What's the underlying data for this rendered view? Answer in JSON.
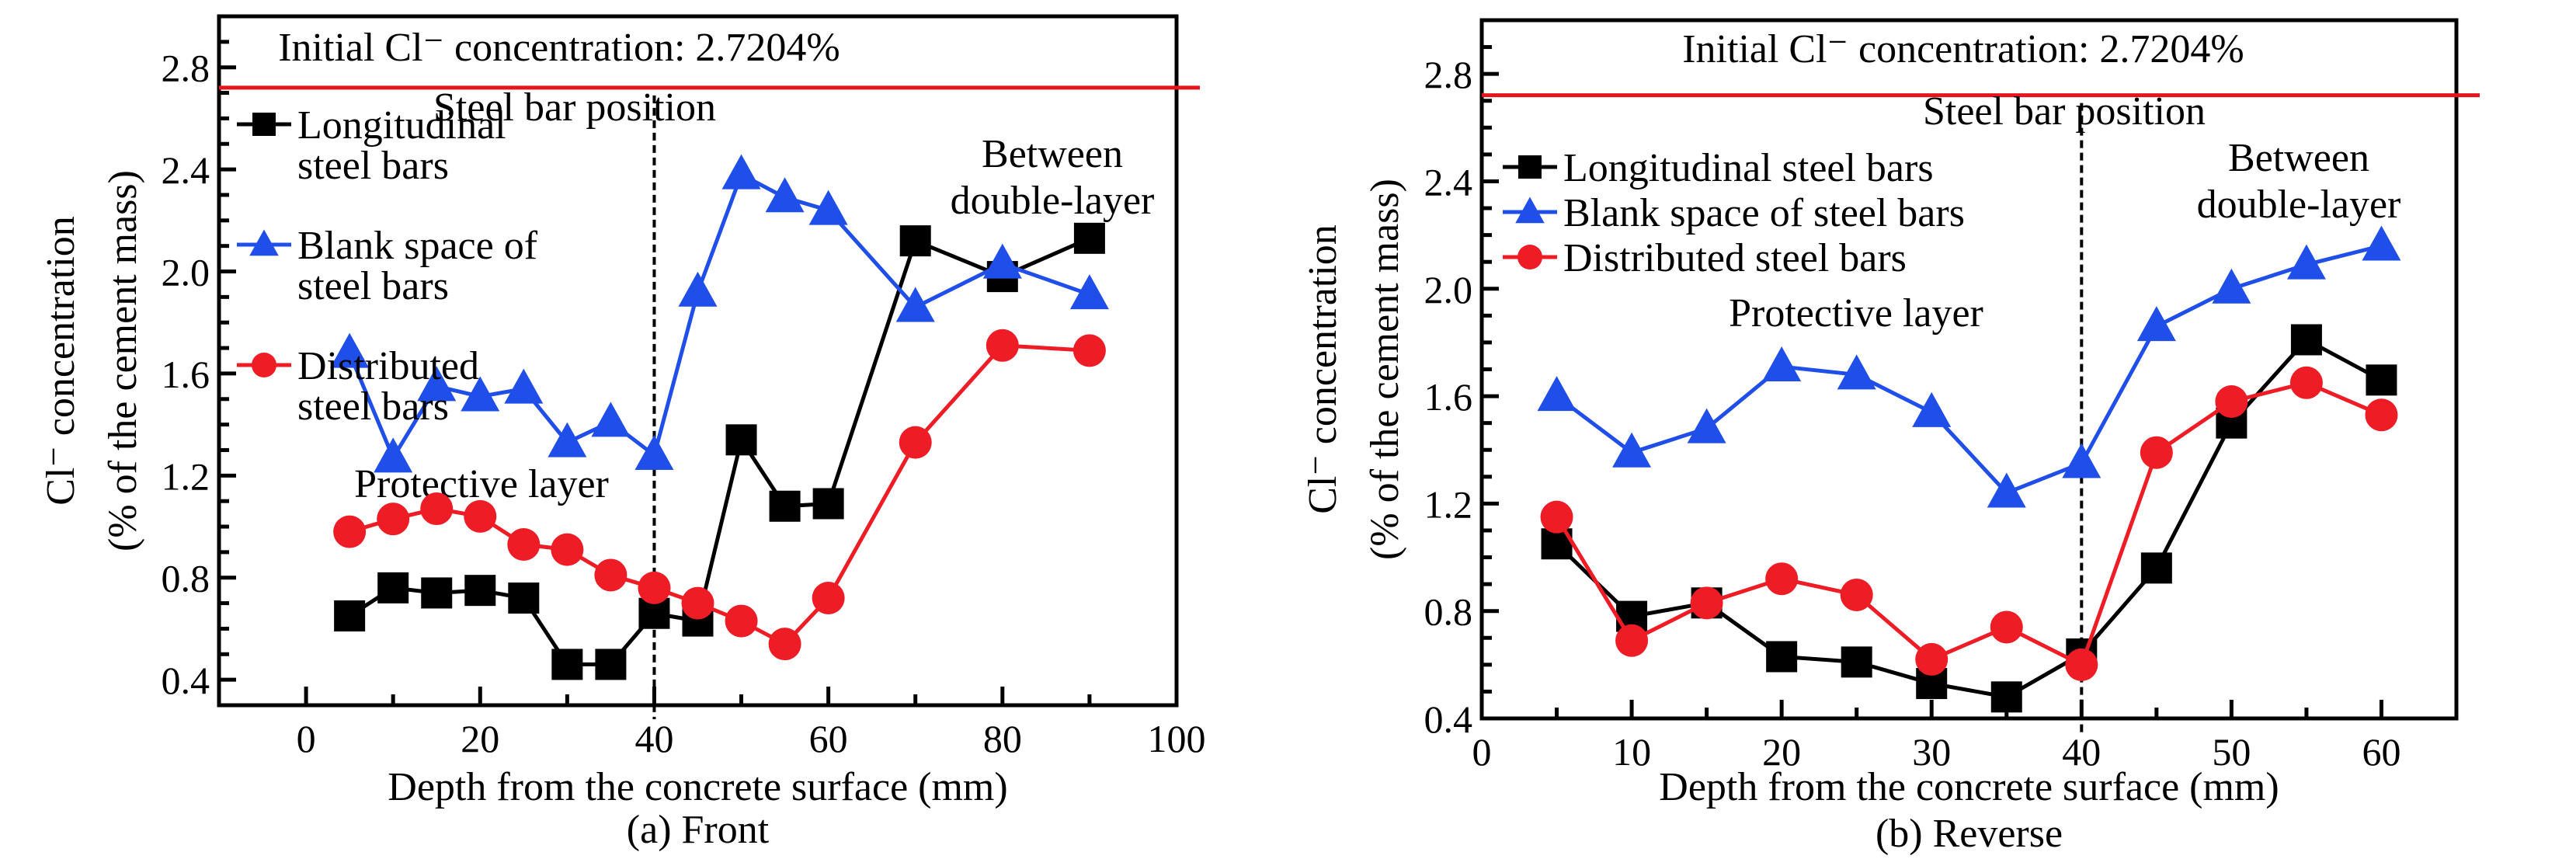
{
  "chart_data": [
    {
      "type": "line",
      "panel": "a",
      "caption": "(a) Front",
      "xlabel": "Depth from the concrete surface (mm)",
      "ylabel_line1": "Cl⁻ concentration",
      "ylabel_line2": "(% of the cement mass)",
      "xlim": [
        -10,
        100
      ],
      "ylim": [
        0.3,
        3.0
      ],
      "xticks": [
        0,
        20,
        40,
        60,
        80,
        100
      ],
      "xminor_step": 10,
      "yticks": [
        0.4,
        0.8,
        1.2,
        1.6,
        2.0,
        2.4,
        2.8
      ],
      "yminor_step": 0.1,
      "legend_position": "top-left",
      "reference_line": {
        "y": 2.7204,
        "label": "Initial Cl⁻ concentration: 2.7204%",
        "color": "#e8141c"
      },
      "vertical_line": {
        "x": 40,
        "label": "Steel bar position",
        "style": "dashed"
      },
      "annotations": [
        {
          "text": "Protective layer",
          "region": "left-middle"
        },
        {
          "text_lines": [
            "Between",
            "double-layer"
          ],
          "region": "top-right"
        }
      ],
      "x": [
        5,
        10,
        15,
        20,
        25,
        30,
        35,
        40,
        45,
        50,
        55,
        60,
        70,
        80,
        90
      ],
      "series": [
        {
          "name": "Longitudinal steel bars",
          "legend_lines": [
            "Longitudinal",
            "steel bars"
          ],
          "marker": "square",
          "color": "#000000",
          "values": [
            0.65,
            0.76,
            0.74,
            0.75,
            0.72,
            0.46,
            0.46,
            0.66,
            0.63,
            1.34,
            1.08,
            1.09,
            2.12,
            1.98,
            2.13
          ]
        },
        {
          "name": "Blank space of steel bars",
          "legend_lines": [
            "Blank space of",
            "steel bars"
          ],
          "marker": "triangle",
          "color": "#1f4fe8",
          "values": [
            1.68,
            1.27,
            1.55,
            1.51,
            1.54,
            1.33,
            1.41,
            1.28,
            1.92,
            2.38,
            2.29,
            2.24,
            1.86,
            2.03,
            1.91
          ]
        },
        {
          "name": "Distributed steel bars",
          "legend_lines": [
            "Distributed",
            "steel bars"
          ],
          "marker": "circle",
          "color": "#ee1c24",
          "values": [
            0.98,
            1.03,
            1.07,
            1.04,
            0.93,
            0.91,
            0.81,
            0.76,
            0.7,
            0.63,
            0.54,
            0.72,
            1.33,
            1.71,
            1.69
          ]
        }
      ]
    },
    {
      "type": "line",
      "panel": "b",
      "caption": "(b) Reverse",
      "xlabel": "Depth from the concrete surface (mm)",
      "ylabel_line1": "Cl⁻ concentration",
      "ylabel_line2": "(% of the cement mass)",
      "xlim": [
        0,
        65
      ],
      "ylim": [
        0.4,
        3.0
      ],
      "xticks": [
        0,
        10,
        20,
        30,
        40,
        50,
        60
      ],
      "xminor_step": 5,
      "yticks": [
        0.4,
        0.8,
        1.2,
        1.6,
        2.0,
        2.4,
        2.8
      ],
      "yminor_step": 0.1,
      "legend_position": "top-left",
      "reference_line": {
        "y": 2.7204,
        "label": "Initial Cl⁻ concentration: 2.7204%",
        "color": "#e8141c"
      },
      "vertical_line": {
        "x": 40,
        "label": "Steel bar position",
        "style": "dashed"
      },
      "annotations": [
        {
          "text": "Protective layer",
          "region": "center-upper"
        },
        {
          "text_lines": [
            "Between",
            "double-layer"
          ],
          "region": "top-right"
        }
      ],
      "x": [
        5,
        10,
        15,
        20,
        25,
        30,
        35,
        40,
        45,
        50,
        55,
        60
      ],
      "series": [
        {
          "name": "Longitudinal steel bars",
          "legend_lines": [
            "Longitudinal steel bars"
          ],
          "marker": "square",
          "color": "#000000",
          "values": [
            1.05,
            0.78,
            0.83,
            0.63,
            0.61,
            0.53,
            0.48,
            0.64,
            0.96,
            1.5,
            1.81,
            1.66
          ]
        },
        {
          "name": "Blank space of steel bars",
          "legend_lines": [
            "Blank space of steel bars"
          ],
          "marker": "triangle",
          "color": "#1f4fe8",
          "values": [
            1.6,
            1.39,
            1.48,
            1.71,
            1.68,
            1.54,
            1.24,
            1.35,
            1.86,
            2.0,
            2.09,
            2.16
          ]
        },
        {
          "name": "Distributed steel bars",
          "legend_lines": [
            "Distributed steel bars"
          ],
          "marker": "circle",
          "color": "#ee1c24",
          "values": [
            1.15,
            0.69,
            0.83,
            0.92,
            0.86,
            0.62,
            0.74,
            0.6,
            1.39,
            1.58,
            1.65,
            1.53
          ]
        }
      ]
    }
  ]
}
